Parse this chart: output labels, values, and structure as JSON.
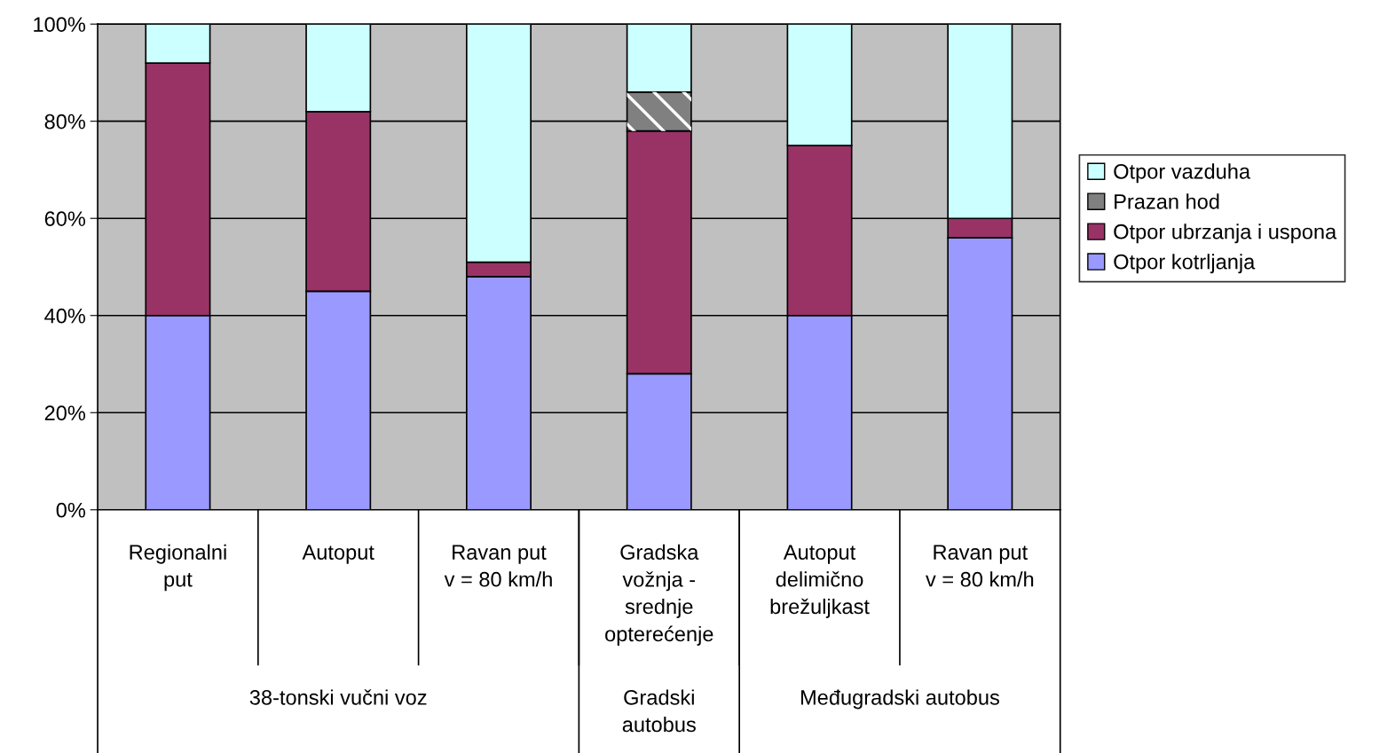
{
  "chart_data": {
    "type": "bar",
    "stacked": true,
    "categories": [
      "Regionalni\nput",
      "Autoput",
      "Ravan put\nv = 80 km/h",
      "Gradska\nvožnja -\nsrednje\nopterećenje",
      "Autoput\ndelimično\nbrežuljkast",
      "Ravan put\nv = 80 km/h"
    ],
    "series": [
      {
        "name": "Otpor kotrljanja",
        "color": "#9999ff",
        "values": [
          40,
          45,
          48,
          28,
          40,
          56
        ]
      },
      {
        "name": "Otpor ubrzanja i uspona",
        "color": "#993366",
        "values": [
          52,
          37,
          3,
          50,
          35,
          4
        ]
      },
      {
        "name": "Prazan hod",
        "color": "#808080",
        "values": [
          0,
          0,
          0,
          8,
          0,
          0
        ]
      },
      {
        "name": "Otpor vazduha",
        "color": "#ccffff",
        "values": [
          8,
          18,
          49,
          14,
          25,
          40
        ]
      }
    ],
    "ylim": [
      0,
      100
    ],
    "yticks": [
      {
        "value": 0,
        "label": "0%"
      },
      {
        "value": 20,
        "label": "20%"
      },
      {
        "value": 40,
        "label": "40%"
      },
      {
        "value": 60,
        "label": "60%"
      },
      {
        "value": 80,
        "label": "80%"
      },
      {
        "value": 100,
        "label": "100%"
      }
    ],
    "grid": "y",
    "legend": "right",
    "annotations": [
      "38-tonski vučni voz",
      "Gradski\nautobus",
      "Međugradski autobus"
    ]
  }
}
